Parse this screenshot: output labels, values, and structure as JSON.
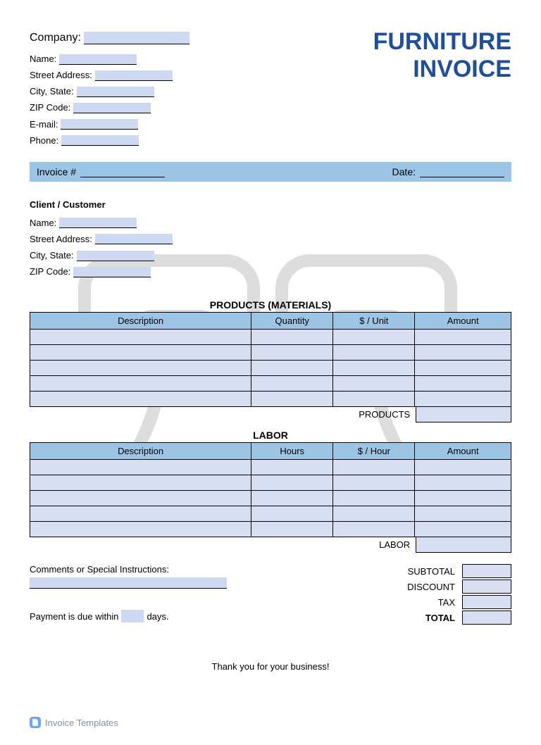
{
  "title_line1": "FURNITURE",
  "title_line2": "INVOICE",
  "title_color": "#1f4e9c",
  "company": {
    "label": "Company:",
    "name_label": "Name:",
    "street_label": "Street Address:",
    "city_label": "City, State:",
    "zip_label": "ZIP Code:",
    "email_label": "E-mail:",
    "phone_label": "Phone:"
  },
  "invoice_bar": {
    "number_label": "Invoice #",
    "date_label": "Date:",
    "bg_color": "#9cc4e4"
  },
  "client": {
    "heading": "Client / Customer",
    "name_label": "Name:",
    "street_label": "Street Address:",
    "city_label": "City, State:",
    "zip_label": "ZIP Code:"
  },
  "products_table": {
    "title": "PRODUCTS (MATERIALS)",
    "columns": [
      "Description",
      "Quantity",
      "$ / Unit",
      "Amount"
    ],
    "col_widths": [
      "46%",
      "17%",
      "17%",
      "20%"
    ],
    "row_count": 5,
    "header_bg": "#9cc4e4",
    "cell_bg": "#d8dff2",
    "subtotal_label": "PRODUCTS"
  },
  "labor_table": {
    "title": "LABOR",
    "columns": [
      "Description",
      "Hours",
      "$ / Hour",
      "Amount"
    ],
    "col_widths": [
      "46%",
      "17%",
      "17%",
      "20%"
    ],
    "row_count": 5,
    "header_bg": "#9cc4e4",
    "cell_bg": "#d8dff2",
    "subtotal_label": "LABOR"
  },
  "comments": {
    "label": "Comments or Special Instructions:"
  },
  "payment": {
    "prefix": "Payment is due within",
    "suffix": "days."
  },
  "totals": {
    "lines": [
      {
        "label": "SUBTOTAL",
        "bold": false
      },
      {
        "label": "DISCOUNT",
        "bold": false
      },
      {
        "label": "TAX",
        "bold": false
      },
      {
        "label": "TOTAL",
        "bold": true
      }
    ]
  },
  "thanks": "Thank you for your business!",
  "footer": "Invoice Templates",
  "styling": {
    "fill_color": "#cdd9f0",
    "border_color": "#000000",
    "background": "#ffffff",
    "font_family": "Arial",
    "title_fontsize": 34,
    "body_fontsize": 13
  }
}
